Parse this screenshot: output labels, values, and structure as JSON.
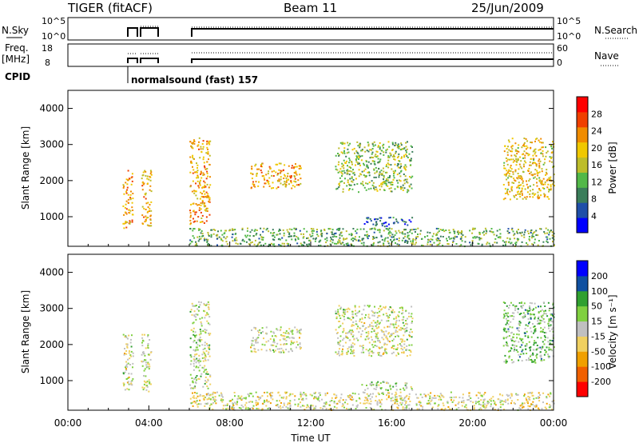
{
  "header": {
    "radar": "TIGER (fitACF)",
    "beam": "Beam 11",
    "date": "25/Jun/2009"
  },
  "info_panels": {
    "nsky_label": "N.Sky",
    "nsky_ticks": [
      "10^5",
      "10^0"
    ],
    "nsearch_label": "N.Search",
    "nsearch_ticks": [
      "10^5",
      "10^0"
    ],
    "freq_label": "Freq.",
    "freq_unit": "[MHz]",
    "freq_ticks": [
      "18",
      "8"
    ],
    "nave_label": "Nave",
    "nave_ticks": [
      "60",
      "0"
    ],
    "cpid_label": "CPID",
    "cpid_value": "normalsound (fast) 157"
  },
  "chart_data": [
    {
      "type": "heatmap",
      "name": "power",
      "ylabel": "Slant Range [km]",
      "ylim": [
        180,
        4500
      ],
      "yticks": [
        "1000",
        "2000",
        "3000",
        "4000"
      ],
      "xlim_hours": [
        0,
        24
      ],
      "colorbar_label": "Power [dB]",
      "colorbar_ticks": [
        "28",
        "24",
        "20",
        "16",
        "12",
        "8",
        "4"
      ],
      "colors": [
        "#0000ff",
        "#1f4fa8",
        "#3a7d5a",
        "#52b848",
        "#bdbd2a",
        "#f0c800",
        "#f08c00",
        "#f04000",
        "#ff0000"
      ],
      "regions": [
        {
          "t": [
            2.7,
            3.2
          ],
          "r": [
            700,
            2300
          ],
          "v": 22
        },
        {
          "t": [
            3.6,
            4.1
          ],
          "r": [
            700,
            2300
          ],
          "v": 20
        },
        {
          "t": [
            6.0,
            7.0
          ],
          "r": [
            800,
            3200
          ],
          "v": 22
        },
        {
          "t": [
            9.0,
            11.5
          ],
          "r": [
            1800,
            2500
          ],
          "v": 21
        },
        {
          "t": [
            13.2,
            17.0
          ],
          "r": [
            1700,
            3100
          ],
          "v": 14
        },
        {
          "t": [
            14.5,
            17.0
          ],
          "r": [
            750,
            1000
          ],
          "v": 6
        },
        {
          "t": [
            6.0,
            24.0
          ],
          "r": [
            200,
            700
          ],
          "v": 12
        },
        {
          "t": [
            21.5,
            24.0
          ],
          "r": [
            1500,
            3200
          ],
          "v": 19
        }
      ]
    },
    {
      "type": "heatmap",
      "name": "velocity",
      "ylabel": "Slant Range [km]",
      "ylim": [
        180,
        4500
      ],
      "yticks": [
        "1000",
        "2000",
        "3000",
        "4000"
      ],
      "xlim_hours": [
        0,
        24
      ],
      "xticks": [
        "00:00",
        "04:00",
        "08:00",
        "12:00",
        "16:00",
        "20:00",
        "00:00"
      ],
      "xlabel": "Time UT",
      "colorbar_label": "Velocity [m s⁻¹]",
      "colorbar_ticks": [
        "200",
        "100",
        "50",
        "15",
        "-15",
        "-50",
        "-100",
        "-200"
      ],
      "colors": [
        "#ff0000",
        "#f06000",
        "#f0a000",
        "#f0d060",
        "#c0c0c0",
        "#80d040",
        "#30a030",
        "#1050a0",
        "#0000ff"
      ],
      "regions": [
        {
          "t": [
            2.7,
            3.2
          ],
          "r": [
            700,
            2300
          ],
          "v": 0
        },
        {
          "t": [
            3.6,
            4.1
          ],
          "r": [
            700,
            2300
          ],
          "v": 0
        },
        {
          "t": [
            6.0,
            7.0
          ],
          "r": [
            800,
            3200
          ],
          "v": 20
        },
        {
          "t": [
            9.0,
            11.5
          ],
          "r": [
            1800,
            2500
          ],
          "v": 0
        },
        {
          "t": [
            13.2,
            17.0
          ],
          "r": [
            1700,
            3100
          ],
          "v": 0
        },
        {
          "t": [
            14.5,
            17.0
          ],
          "r": [
            750,
            1000
          ],
          "v": 40
        },
        {
          "t": [
            6.0,
            24.0
          ],
          "r": [
            200,
            700
          ],
          "v": -20
        },
        {
          "t": [
            21.5,
            24.0
          ],
          "r": [
            1500,
            3200
          ],
          "v": 60
        }
      ]
    }
  ]
}
